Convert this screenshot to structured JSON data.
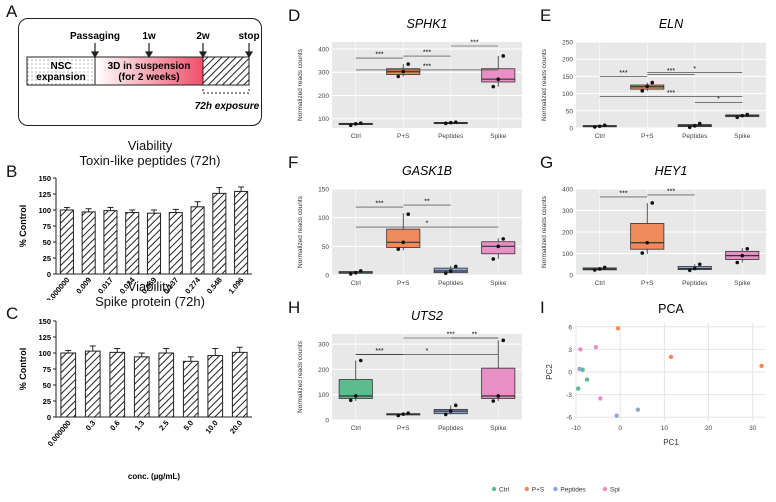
{
  "panel_letters": [
    "A",
    "B",
    "C",
    "D",
    "E",
    "F",
    "G",
    "H",
    "I"
  ],
  "timeline": {
    "passaging": "Passaging",
    "w1": "1w",
    "w2": "2w",
    "stop": "stop",
    "nsc": "NSC\nexpansion",
    "suspension": "3D in suspension\n(for 2 weeks)",
    "exposure": "72h exposure"
  },
  "viability_b": {
    "title1": "Viability",
    "title2": "Toxin-like peptides (72h)"
  },
  "viability_c": {
    "title1": "Viability",
    "title2": "Spike protein (72h)"
  },
  "gene_titles": {
    "D": "SPHK1",
    "E": "ELN",
    "F": "GASK1B",
    "G": "HEY1",
    "H": "UTS2"
  },
  "pca_title": "PCA",
  "colors": {
    "Ctrl": "#5dbb8e",
    "P+S": "#f08a5d",
    "Peptides": "#8ea6d4",
    "Spike": "#e88fc6",
    "panel_bg": "#e8e8e8",
    "bar_fill": "#d9d9d9"
  },
  "chart_data": [
    {
      "id": "B",
      "type": "bar",
      "ylabel": "% Control",
      "ylim": [
        0,
        150
      ],
      "yticks": [
        0,
        25,
        50,
        75,
        100,
        125,
        150
      ],
      "categories": [
        "0.000000",
        "0.009",
        "0.017",
        "0.034",
        "0.069",
        "0.137",
        "0.274",
        "0.548",
        "1.096"
      ],
      "values": [
        100,
        97,
        99,
        96,
        95,
        96,
        105,
        126,
        129
      ],
      "errors": [
        4,
        5,
        5,
        4,
        5,
        5,
        8,
        9,
        7
      ]
    },
    {
      "id": "C",
      "type": "bar",
      "ylabel": "% Control",
      "xlabel": "conc. (µg/mL)",
      "ylim": [
        0,
        150
      ],
      "yticks": [
        0,
        25,
        50,
        75,
        100,
        125,
        150
      ],
      "categories": [
        "0.000000",
        "0.3",
        "0.6",
        "1.3",
        "2.5",
        "5.0",
        "10.0",
        "20.0"
      ],
      "values": [
        100,
        103,
        101,
        94,
        100,
        87,
        96,
        101
      ],
      "errors": [
        4,
        8,
        6,
        6,
        7,
        7,
        11,
        8
      ]
    },
    {
      "id": "D",
      "type": "box",
      "ylabel": "Normalized reads counts",
      "ylim": [
        60,
        430
      ],
      "yticks": [
        100,
        200,
        300,
        400
      ],
      "categories": [
        "Ctrl",
        "P+S",
        "Peptides",
        "Spike"
      ],
      "boxes": [
        {
          "q1": 75,
          "med": 77,
          "q3": 80,
          "lo": 72,
          "hi": 81,
          "pts": [
            72,
            78,
            81
          ]
        },
        {
          "q1": 290,
          "med": 302,
          "q3": 315,
          "lo": 282,
          "hi": 335,
          "pts": [
            282,
            303,
            335
          ]
        },
        {
          "q1": 80,
          "med": 82,
          "q3": 84,
          "lo": 79,
          "hi": 85,
          "pts": [
            80,
            83,
            85
          ]
        },
        {
          "q1": 258,
          "med": 270,
          "q3": 315,
          "lo": 238,
          "hi": 370,
          "pts": [
            238,
            270,
            370
          ]
        }
      ],
      "annotations": [
        {
          "from": 0,
          "to": 1,
          "label": "***"
        },
        {
          "from": 1,
          "to": 2,
          "label": "***"
        },
        {
          "from": 2,
          "to": 3,
          "label": "***"
        },
        {
          "from": 0,
          "to": 3,
          "label": "***"
        }
      ]
    },
    {
      "id": "E",
      "type": "box",
      "ylabel": "Normalized reads counts",
      "ylim": [
        0,
        250
      ],
      "yticks": [
        0,
        50,
        100,
        150,
        200,
        250
      ],
      "categories": [
        "Ctrl",
        "P+S",
        "Peptides",
        "Spike"
      ],
      "boxes": [
        {
          "q1": 4,
          "med": 6,
          "q3": 7,
          "lo": 3,
          "hi": 8,
          "pts": [
            3,
            5,
            8
          ]
        },
        {
          "q1": 113,
          "med": 120,
          "q3": 125,
          "lo": 108,
          "hi": 132,
          "pts": [
            108,
            121,
            132
          ]
        },
        {
          "q1": 4,
          "med": 7,
          "q3": 10,
          "lo": 2,
          "hi": 13,
          "pts": [
            2,
            6,
            13
          ]
        },
        {
          "q1": 33,
          "med": 36,
          "q3": 38,
          "lo": 31,
          "hi": 39,
          "pts": [
            31,
            36,
            39
          ]
        }
      ],
      "annotations": [
        {
          "from": 0,
          "to": 1,
          "label": "***"
        },
        {
          "from": 1,
          "to": 2,
          "label": "***"
        },
        {
          "from": 1,
          "to": 3,
          "label": "*"
        },
        {
          "from": 2,
          "to": 3,
          "label": "*"
        },
        {
          "from": 0,
          "to": 3,
          "label": "***"
        }
      ]
    },
    {
      "id": "F",
      "type": "box",
      "ylabel": "Normalized reads counts",
      "ylim": [
        0,
        150
      ],
      "yticks": [
        0,
        50,
        100,
        150
      ],
      "categories": [
        "Ctrl",
        "P+S",
        "Peptides",
        "Spike"
      ],
      "boxes": [
        {
          "q1": 3,
          "med": 5,
          "q3": 6,
          "lo": 2,
          "hi": 7,
          "pts": [
            2,
            4,
            7
          ]
        },
        {
          "q1": 48,
          "med": 57,
          "q3": 80,
          "lo": 43,
          "hi": 108,
          "pts": [
            45,
            57,
            106
          ]
        },
        {
          "q1": 4,
          "med": 7,
          "q3": 12,
          "lo": 3,
          "hi": 16,
          "pts": [
            3,
            7,
            15
          ]
        },
        {
          "q1": 37,
          "med": 50,
          "q3": 58,
          "lo": 28,
          "hi": 64,
          "pts": [
            28,
            50,
            63
          ]
        }
      ],
      "annotations": [
        {
          "from": 0,
          "to": 1,
          "label": "***"
        },
        {
          "from": 1,
          "to": 2,
          "label": "**"
        },
        {
          "from": 0,
          "to": 3,
          "label": "*"
        }
      ]
    },
    {
      "id": "G",
      "type": "box",
      "ylabel": "Normalized reads counts",
      "ylim": [
        0,
        400
      ],
      "yticks": [
        0,
        100,
        200,
        300,
        400
      ],
      "categories": [
        "Ctrl",
        "P+S",
        "Peptides",
        "Spike"
      ],
      "boxes": [
        {
          "q1": 24,
          "med": 28,
          "q3": 33,
          "lo": 22,
          "hi": 36,
          "pts": [
            23,
            28,
            35
          ]
        },
        {
          "q1": 120,
          "med": 150,
          "q3": 240,
          "lo": 98,
          "hi": 335,
          "pts": [
            102,
            150,
            335
          ]
        },
        {
          "q1": 25,
          "med": 30,
          "q3": 40,
          "lo": 22,
          "hi": 50,
          "pts": [
            22,
            30,
            50
          ]
        },
        {
          "q1": 72,
          "med": 90,
          "q3": 110,
          "lo": 58,
          "hi": 125,
          "pts": [
            58,
            90,
            122
          ]
        }
      ],
      "annotations": [
        {
          "from": 0,
          "to": 1,
          "label": "***"
        },
        {
          "from": 1,
          "to": 2,
          "label": "***"
        }
      ]
    },
    {
      "id": "H",
      "type": "box",
      "ylabel": "Normalized reads counts",
      "ylim": [
        0,
        340
      ],
      "yticks": [
        0,
        100,
        200,
        300
      ],
      "categories": [
        "Ctrl",
        "P+S",
        "Peptides",
        "Spike"
      ],
      "boxes": [
        {
          "q1": 85,
          "med": 95,
          "q3": 160,
          "lo": 75,
          "hi": 235,
          "pts": [
            78,
            95,
            235
          ]
        },
        {
          "q1": 20,
          "med": 23,
          "q3": 25,
          "lo": 18,
          "hi": 27,
          "pts": [
            18,
            23,
            27
          ]
        },
        {
          "q1": 25,
          "med": 35,
          "q3": 42,
          "lo": 22,
          "hi": 58,
          "pts": [
            22,
            35,
            58
          ]
        },
        {
          "q1": 85,
          "med": 95,
          "q3": 205,
          "lo": 75,
          "hi": 315,
          "pts": [
            75,
            95,
            315
          ]
        }
      ],
      "annotations": [
        {
          "from": 0,
          "to": 1,
          "label": "***"
        },
        {
          "from": 1,
          "to": 3,
          "label": "***"
        },
        {
          "from": 2,
          "to": 3,
          "label": "**"
        },
        {
          "from": 0,
          "to": 3,
          "label": "*"
        }
      ]
    },
    {
      "id": "I",
      "type": "scatter",
      "xlabel": "PC1",
      "ylabel": "PC2",
      "xlim": [
        -10,
        33
      ],
      "ylim": [
        -6.5,
        6.5
      ],
      "xticks": [
        -10,
        0,
        10,
        20,
        30
      ],
      "yticks": [
        -6,
        -3,
        0,
        3,
        6
      ],
      "series": [
        {
          "name": "Ctrl",
          "points": [
            [
              -8.5,
              0.3
            ],
            [
              -7.5,
              -1.0
            ],
            [
              -9.5,
              -2.2
            ]
          ]
        },
        {
          "name": "P+S",
          "points": [
            [
              -0.5,
              5.8
            ],
            [
              11.5,
              2.0
            ],
            [
              32,
              0.8
            ]
          ]
        },
        {
          "name": "Peptides",
          "points": [
            [
              -9.2,
              0.4
            ],
            [
              -0.8,
              -5.8
            ],
            [
              4,
              -5.0
            ]
          ]
        },
        {
          "name": "Spike",
          "points": [
            [
              -9,
              3.0
            ],
            [
              -5.5,
              3.3
            ],
            [
              -4.5,
              -3.5
            ]
          ]
        }
      ],
      "legend": [
        "Ctrl",
        "P+S",
        "Peptides",
        "Spike"
      ]
    }
  ]
}
